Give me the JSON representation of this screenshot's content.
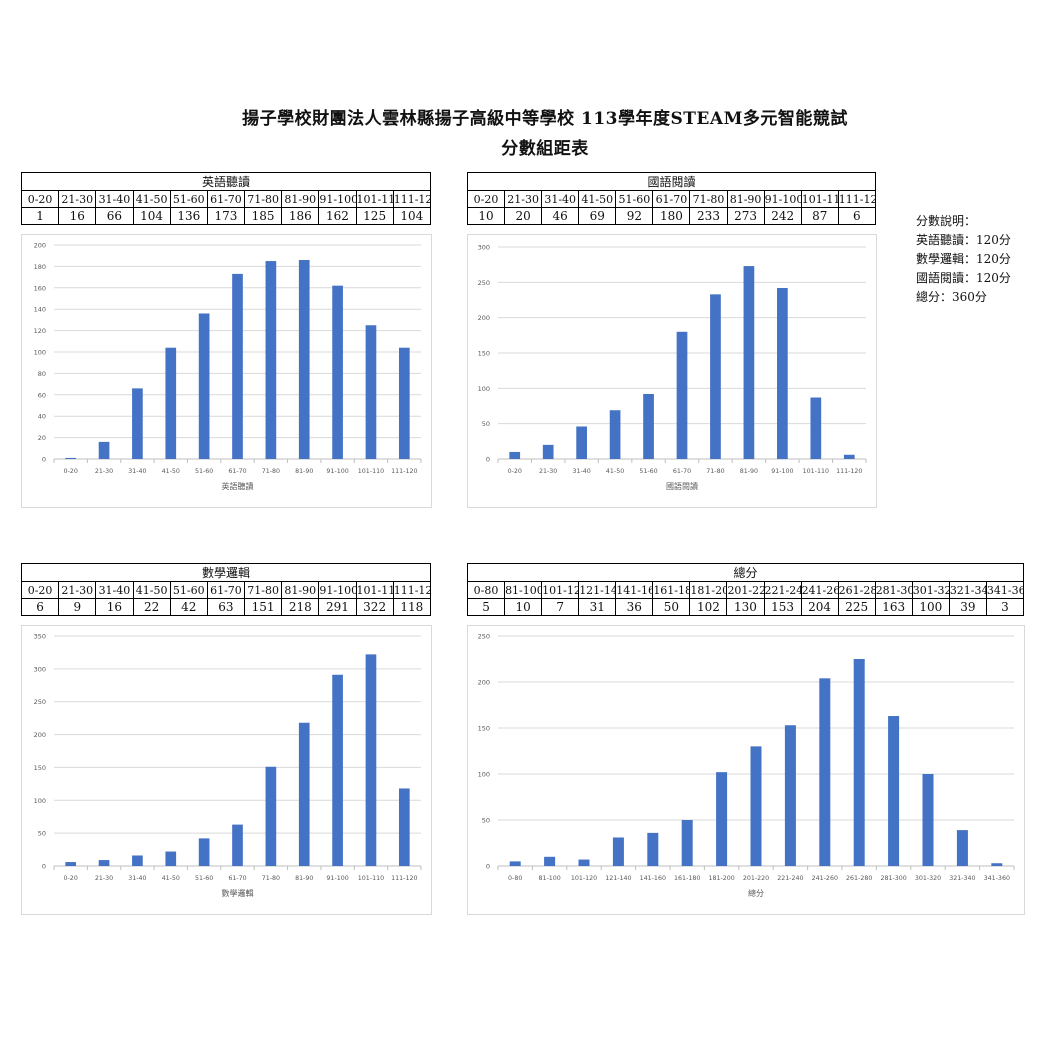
{
  "title": "揚子學校財團法人雲林縣揚子高級中等學校 113學年度STEAM多元智能競試",
  "subtitle": "分數組距表",
  "note": {
    "heading": "分數說明：",
    "lines": [
      "英語聽讀：120分",
      "數學邏輯：120分",
      "國語閱讀：120分",
      "總分：360分"
    ]
  },
  "chart_data": [
    {
      "type": "bar",
      "title": "英語聽讀",
      "xlabel": "英語聽讀",
      "ylabel": "",
      "categories": [
        "0-20",
        "21-30",
        "31-40",
        "41-50",
        "51-60",
        "61-70",
        "71-80",
        "81-90",
        "91-100",
        "101-110",
        "111-120"
      ],
      "values": [
        1,
        16,
        66,
        104,
        136,
        173,
        185,
        186,
        162,
        125,
        104
      ],
      "ylim": [
        0,
        200
      ],
      "ystep": 20,
      "grid": true,
      "color": "#4472C4"
    },
    {
      "type": "bar",
      "title": "國語閱讀",
      "xlabel": "國語閱讀",
      "ylabel": "",
      "categories": [
        "0-20",
        "21-30",
        "31-40",
        "41-50",
        "51-60",
        "61-70",
        "71-80",
        "81-90",
        "91-100",
        "101-110",
        "111-120"
      ],
      "values": [
        10,
        20,
        46,
        69,
        92,
        180,
        233,
        273,
        242,
        87,
        6
      ],
      "ylim": [
        0,
        300
      ],
      "ystep": 50,
      "grid": true,
      "color": "#4472C4"
    },
    {
      "type": "bar",
      "title": "數學邏輯",
      "xlabel": "數學邏輯",
      "ylabel": "",
      "categories": [
        "0-20",
        "21-30",
        "31-40",
        "41-50",
        "51-60",
        "61-70",
        "71-80",
        "81-90",
        "91-100",
        "101-110",
        "111-120"
      ],
      "values": [
        6,
        9,
        16,
        22,
        42,
        63,
        151,
        218,
        291,
        322,
        118
      ],
      "ylim": [
        0,
        350
      ],
      "ystep": 50,
      "grid": true,
      "color": "#4472C4"
    },
    {
      "type": "bar",
      "title": "總分",
      "xlabel": "總分",
      "ylabel": "",
      "categories": [
        "0-80",
        "81-100",
        "101-120",
        "121-140",
        "141-160",
        "161-180",
        "181-200",
        "201-220",
        "221-240",
        "241-260",
        "261-280",
        "281-300",
        "301-320",
        "321-340",
        "341-360"
      ],
      "values": [
        5,
        10,
        7,
        31,
        36,
        50,
        102,
        130,
        153,
        204,
        225,
        163,
        100,
        39,
        3
      ],
      "ylim": [
        0,
        250
      ],
      "ystep": 50,
      "grid": true,
      "color": "#4472C4"
    }
  ]
}
